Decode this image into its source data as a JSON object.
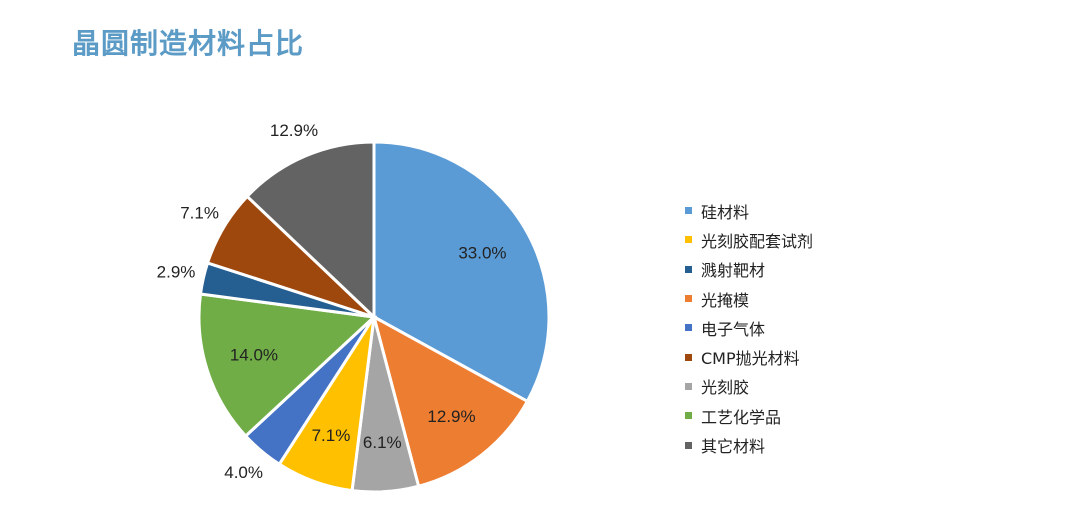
{
  "title": "晶圆制造材料占比",
  "chart_data": {
    "type": "pie",
    "slices": [
      {
        "label": "硅材料",
        "value": 33.0,
        "display": "33.0%",
        "color": "#5b9bd5",
        "label_pos": "inside"
      },
      {
        "label": "光掩模",
        "value": 12.9,
        "display": "12.9%",
        "color": "#ed7d31",
        "label_pos": "inside"
      },
      {
        "label": "光刻胶",
        "value": 6.1,
        "display": "6.1%",
        "color": "#a5a5a5",
        "label_pos": "inside"
      },
      {
        "label": "光刻胶配套试剂",
        "value": 7.1,
        "display": "7.1%",
        "color": "#ffc000",
        "label_pos": "inside"
      },
      {
        "label": "电子气体",
        "value": 4.0,
        "display": "4.0%",
        "color": "#4472c4",
        "label_pos": "outside"
      },
      {
        "label": "工艺化学品",
        "value": 14.0,
        "display": "14.0%",
        "color": "#70ad47",
        "label_pos": "inside"
      },
      {
        "label": "溅射靶材",
        "value": 2.9,
        "display": "2.9%",
        "color": "#255e91",
        "label_pos": "outside"
      },
      {
        "label": "CMP抛光材料",
        "value": 7.1,
        "display": "7.1%",
        "color": "#9e480e",
        "label_pos": "outside"
      },
      {
        "label": "其它材料",
        "value": 12.9,
        "display": "12.9%",
        "color": "#636363",
        "label_pos": "outside"
      }
    ],
    "legend": [
      {
        "label": "硅材料",
        "color": "#5b9bd5"
      },
      {
        "label": "光刻胶配套试剂",
        "color": "#ffc000"
      },
      {
        "label": "溅射靶材",
        "color": "#255e91"
      },
      {
        "label": "光掩模",
        "color": "#ed7d31"
      },
      {
        "label": "电子气体",
        "color": "#4472c4"
      },
      {
        "label": "CMP抛光材料",
        "color": "#9e480e"
      },
      {
        "label": "光刻胶",
        "color": "#a5a5a5"
      },
      {
        "label": "工艺化学品",
        "color": "#70ad47"
      },
      {
        "label": "其它材料",
        "color": "#636363"
      }
    ],
    "legend_position": "right"
  }
}
